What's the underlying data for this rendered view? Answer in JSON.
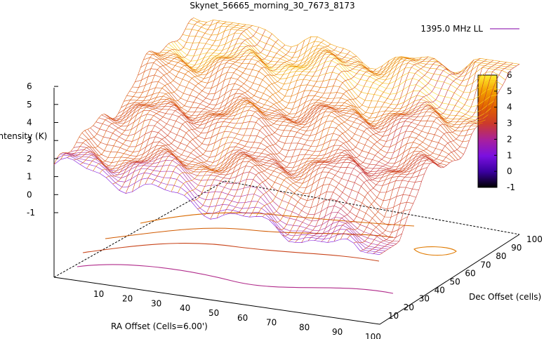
{
  "chart_data": {
    "type": "surface3d",
    "title": "Skynet_56665_morning_30_7673_8173",
    "xlabel": "RA Offset (Cells=6.00')",
    "ylabel": "Dec Offset (cells)",
    "zlabel": "Intensity (K)",
    "x_ticks": [
      "10",
      "20",
      "30",
      "40",
      "50",
      "60",
      "70",
      "80",
      "90",
      "100"
    ],
    "y_ticks": [
      "10",
      "20",
      "30",
      "40",
      "50",
      "60",
      "70",
      "80",
      "90",
      "100"
    ],
    "z_ticks": [
      "-1",
      "0",
      "1",
      "2",
      "3",
      "4",
      "5",
      "6"
    ],
    "xlim": [
      0,
      100
    ],
    "ylim": [
      0,
      100
    ],
    "zlim": [
      -1,
      6
    ],
    "colorbar": {
      "ticks": [
        "-1",
        "0",
        "1",
        "2",
        "3",
        "4",
        "5",
        "6"
      ],
      "range": [
        -1,
        6
      ],
      "colors": [
        "#000000",
        "#4b00cc",
        "#8a10e6",
        "#b5317a",
        "#d1490f",
        "#e06a00",
        "#f09900",
        "#ffd800",
        "#ffff20"
      ]
    },
    "legend": {
      "label": "1395.0 MHz LL",
      "position": "top-right",
      "color": "#9b30b8"
    },
    "grid": false,
    "surface_description_range_K": [
      0.5,
      5.8
    ]
  }
}
